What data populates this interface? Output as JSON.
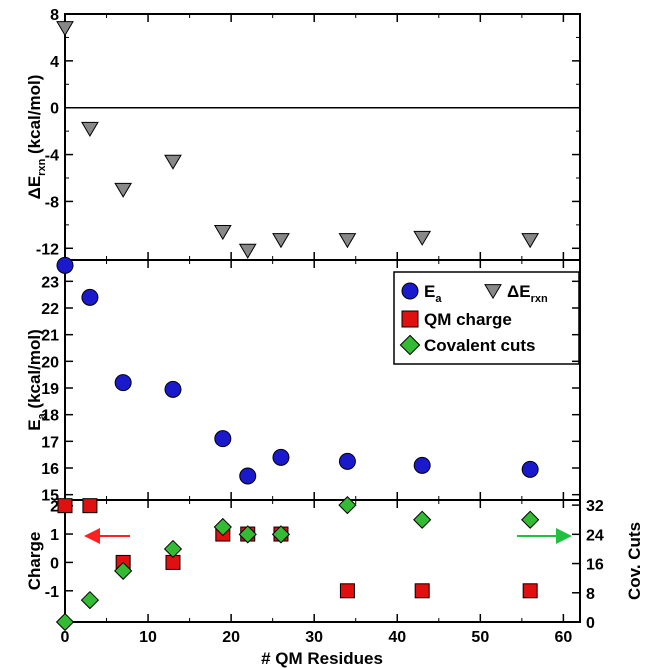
{
  "chart_data": [
    {
      "panel": "top",
      "type": "scatter",
      "ylabel_main": "ΔE",
      "ylabel_sub": "rxn",
      "ylabel_tail": " (kcal/mol)",
      "ylim": [
        -13,
        8
      ],
      "yticks": [
        8,
        4,
        0,
        -4,
        -8,
        -12
      ],
      "reference_line": 0,
      "series": [
        {
          "marker": "triangle-down",
          "color": "#888888",
          "x": [
            0,
            3,
            7,
            13,
            19,
            22,
            26,
            34,
            43,
            56
          ],
          "y": [
            6.8,
            -1.8,
            -7.0,
            -4.6,
            -10.6,
            -12.2,
            -11.3,
            -11.3,
            -11.1,
            -11.3
          ]
        }
      ]
    },
    {
      "panel": "middle",
      "type": "scatter",
      "ylabel_main": "E",
      "ylabel_sub": "a",
      "ylabel_tail": " (kcal/mol)",
      "ylim": [
        14.8,
        23.8
      ],
      "yticks": [
        15,
        16,
        17,
        18,
        19,
        20,
        21,
        22,
        23
      ],
      "series": [
        {
          "marker": "circle",
          "color": "#1a1acc",
          "x": [
            0,
            3,
            7,
            13,
            19,
            22,
            26,
            34,
            43,
            56
          ],
          "y": [
            23.6,
            22.4,
            19.2,
            18.95,
            17.1,
            15.7,
            16.4,
            16.25,
            16.1,
            15.95
          ]
        }
      ],
      "legend": [
        {
          "marker": "circle",
          "color": "#1a1acc",
          "main": "E",
          "sub": "a"
        },
        {
          "marker": "triangle-down",
          "color": "#888888",
          "main": "ΔE",
          "sub": "rxn"
        },
        {
          "marker": "square",
          "color": "#e01010",
          "main": "QM charge",
          "sub": ""
        },
        {
          "marker": "diamond",
          "color": "#33bb33",
          "main": "Covalent cuts",
          "sub": ""
        }
      ],
      "legend_position": "top-right"
    },
    {
      "panel": "bottom",
      "type": "scatter",
      "xlabel": "# QM Residues",
      "xlim": [
        0,
        62
      ],
      "xticks": [
        0,
        10,
        20,
        30,
        40,
        50,
        60
      ],
      "ylabel_left": "Charge",
      "ylim_left": [
        -2.1,
        2.2
      ],
      "yticks_left": [
        2,
        1,
        0,
        -1
      ],
      "ylabel_right": "Cov. Cuts",
      "ylim_right": [
        0,
        33.4
      ],
      "yticks_right": [
        32,
        24,
        16,
        8,
        0
      ],
      "series": [
        {
          "name": "QM charge",
          "axis": "left",
          "marker": "square",
          "color": "#e01010",
          "x": [
            0,
            3,
            7,
            13,
            19,
            22,
            26,
            34,
            43,
            56
          ],
          "y": [
            2,
            2,
            0,
            0,
            1,
            1,
            1,
            -1,
            -1,
            -1
          ]
        },
        {
          "name": "Covalent cuts",
          "axis": "right",
          "marker": "diamond",
          "color": "#33bb33",
          "x": [
            0,
            3,
            7,
            13,
            19,
            22,
            26,
            34,
            43,
            56
          ],
          "y": [
            0,
            6,
            14,
            20,
            26,
            24,
            24,
            32,
            28,
            28
          ]
        }
      ],
      "arrows": [
        {
          "direction": "left",
          "color": "#ff2020",
          "points_to": "left-axis"
        },
        {
          "direction": "right",
          "color": "#20c040",
          "points_to": "right-axis"
        }
      ]
    }
  ]
}
